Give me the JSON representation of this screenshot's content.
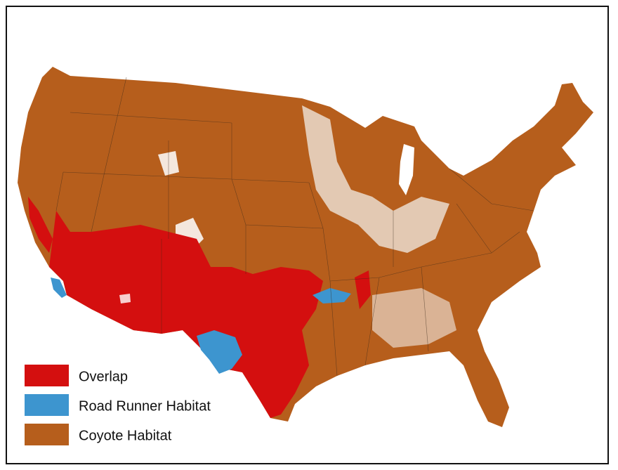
{
  "legend": {
    "items": [
      {
        "label": "Overlap",
        "color": "#d40f0f"
      },
      {
        "label": "Road Runner Habitat",
        "color": "#3d95cf"
      },
      {
        "label": "Coyote Habitat",
        "color": "#b65e1c"
      }
    ]
  }
}
